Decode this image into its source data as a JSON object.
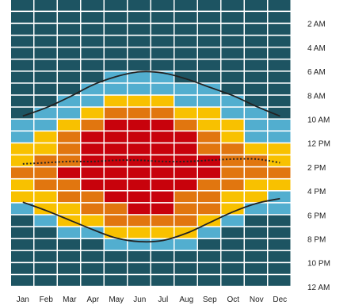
{
  "chart_data": {
    "type": "heatmap",
    "x_categories": [
      "Jan",
      "Feb",
      "Mar",
      "Apr",
      "May",
      "Jun",
      "Jul",
      "Aug",
      "Sep",
      "Oct",
      "Nov",
      "Dec"
    ],
    "y_categories": [
      "12 AM",
      "1 AM",
      "2 AM",
      "3 AM",
      "4 AM",
      "5 AM",
      "6 AM",
      "7 AM",
      "8 AM",
      "9 AM",
      "10 AM",
      "11 AM",
      "12 PM",
      "1 PM",
      "2 PM",
      "3 PM",
      "4 PM",
      "5 PM",
      "6 PM",
      "7 PM",
      "8 PM",
      "9 PM",
      "10 PM",
      "11 PM"
    ],
    "y_tick_labels": [
      "2 AM",
      "4 AM",
      "6 AM",
      "8 AM",
      "10 AM",
      "12 PM",
      "2 PM",
      "4 PM",
      "6 PM",
      "8 PM",
      "10 PM",
      "12 AM"
    ],
    "x_tick_labels": [
      "Jan",
      "Feb",
      "Mar",
      "Apr",
      "May",
      "Jun",
      "Jul",
      "Aug",
      "Sep",
      "Oct",
      "Nov",
      "Dec"
    ],
    "color_levels": [
      "#1d5462",
      "#52aecf",
      "#f8c100",
      "#e1760f",
      "#c8020c"
    ],
    "cells": [
      [
        0,
        0,
        0,
        0,
        0,
        0,
        0,
        0,
        0,
        0,
        0,
        0
      ],
      [
        0,
        0,
        0,
        0,
        0,
        0,
        0,
        0,
        0,
        0,
        0,
        0
      ],
      [
        0,
        0,
        0,
        0,
        0,
        0,
        0,
        0,
        0,
        0,
        0,
        0
      ],
      [
        0,
        0,
        0,
        0,
        0,
        0,
        0,
        0,
        0,
        0,
        0,
        0
      ],
      [
        0,
        0,
        0,
        0,
        0,
        0,
        0,
        0,
        0,
        0,
        0,
        0
      ],
      [
        0,
        0,
        0,
        0,
        0,
        0,
        0,
        0,
        0,
        0,
        0,
        0
      ],
      [
        0,
        0,
        0,
        0,
        1,
        1,
        1,
        0,
        0,
        0,
        0,
        0
      ],
      [
        0,
        0,
        0,
        1,
        1,
        1,
        1,
        1,
        1,
        0,
        0,
        0
      ],
      [
        0,
        0,
        1,
        1,
        2,
        2,
        2,
        1,
        1,
        1,
        0,
        0
      ],
      [
        0,
        1,
        1,
        2,
        3,
        3,
        3,
        2,
        2,
        1,
        1,
        0
      ],
      [
        1,
        1,
        2,
        3,
        4,
        4,
        4,
        3,
        2,
        2,
        1,
        1
      ],
      [
        1,
        2,
        3,
        4,
        4,
        4,
        4,
        4,
        3,
        2,
        1,
        1
      ],
      [
        2,
        2,
        3,
        4,
        4,
        4,
        4,
        4,
        3,
        3,
        2,
        2
      ],
      [
        2,
        3,
        3,
        4,
        4,
        4,
        4,
        4,
        4,
        3,
        3,
        2
      ],
      [
        3,
        3,
        4,
        4,
        4,
        4,
        4,
        4,
        4,
        3,
        3,
        3
      ],
      [
        2,
        3,
        3,
        4,
        4,
        4,
        4,
        4,
        3,
        3,
        2,
        2
      ],
      [
        2,
        2,
        3,
        3,
        4,
        4,
        4,
        3,
        3,
        2,
        2,
        1
      ],
      [
        1,
        2,
        2,
        3,
        3,
        4,
        4,
        3,
        3,
        2,
        1,
        1
      ],
      [
        0,
        1,
        2,
        2,
        3,
        3,
        3,
        3,
        2,
        1,
        0,
        0
      ],
      [
        0,
        0,
        1,
        1,
        2,
        2,
        2,
        2,
        1,
        0,
        0,
        0
      ],
      [
        0,
        0,
        0,
        0,
        1,
        1,
        1,
        1,
        0,
        0,
        0,
        0
      ],
      [
        0,
        0,
        0,
        0,
        0,
        0,
        0,
        0,
        0,
        0,
        0,
        0
      ],
      [
        0,
        0,
        0,
        0,
        0,
        0,
        0,
        0,
        0,
        0,
        0,
        0
      ],
      [
        0,
        0,
        0,
        0,
        0,
        0,
        0,
        0,
        0,
        0,
        0,
        0
      ]
    ],
    "sunrise_hours": [
      9.7,
      9.0,
      8.1,
      7.1,
      6.4,
      6.0,
      6.1,
      6.6,
      7.3,
      8.0,
      8.9,
      9.7
    ],
    "sunset_hours": [
      16.9,
      17.6,
      18.4,
      19.2,
      19.9,
      20.2,
      20.1,
      19.5,
      18.6,
      17.7,
      17.0,
      16.6
    ],
    "solar_noon_hours": [
      13.7,
      13.6,
      13.5,
      13.5,
      13.4,
      13.4,
      13.5,
      13.5,
      13.4,
      13.3,
      13.3,
      13.6
    ],
    "line_color": "#222222"
  }
}
